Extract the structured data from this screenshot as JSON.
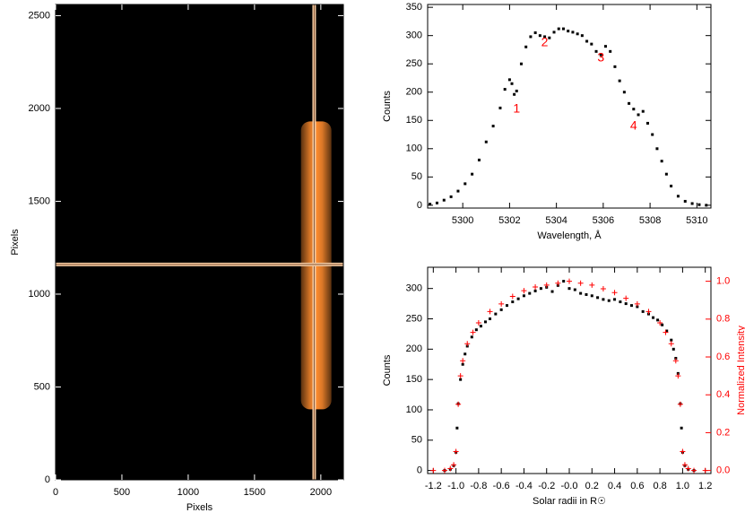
{
  "chart_data": [
    {
      "type": "image",
      "xlabel": "Pixels",
      "ylabel": "Pixels",
      "xlim": [
        0,
        2170
      ],
      "ylim": [
        0,
        2560
      ],
      "xticks": [
        0,
        500,
        1000,
        1500,
        2000
      ],
      "yticks": [
        0,
        500,
        1000,
        1500,
        2000,
        2500
      ],
      "background": "#000000",
      "band": {
        "x": [
          1850,
          2080
        ],
        "y": [
          380,
          1930
        ]
      },
      "band_color": "#ff8c2e",
      "crosshair": {
        "x": 1950,
        "y": 1160
      },
      "crosshair_color": "#f2c9a0"
    },
    {
      "type": "scatter",
      "xlabel": "Wavelength, Å",
      "ylabel": "Counts",
      "xlim": [
        5298.5,
        5310.6
      ],
      "ylim": [
        -5,
        355
      ],
      "xticks": [
        5300,
        5302,
        5304,
        5306,
        5308,
        5310
      ],
      "yticks": [
        0,
        50,
        100,
        150,
        200,
        250,
        300,
        350
      ],
      "series": [
        {
          "color": "#000000",
          "marker": "square",
          "x": [
            5298.6,
            5298.9,
            5299.2,
            5299.5,
            5299.8,
            5300.1,
            5300.4,
            5300.7,
            5301.0,
            5301.3,
            5301.6,
            5301.8,
            5302.0,
            5302.1,
            5302.2,
            5302.3,
            5302.5,
            5302.7,
            5302.9,
            5303.1,
            5303.3,
            5303.5,
            5303.7,
            5303.9,
            5304.1,
            5304.3,
            5304.5,
            5304.7,
            5304.9,
            5305.1,
            5305.3,
            5305.5,
            5305.7,
            5305.9,
            5306.1,
            5306.3,
            5306.5,
            5306.7,
            5306.9,
            5307.1,
            5307.3,
            5307.5,
            5307.7,
            5307.9,
            5308.1,
            5308.3,
            5308.5,
            5308.7,
            5308.9,
            5309.2,
            5309.5,
            5309.8,
            5310.1,
            5310.4
          ],
          "values": [
            2,
            4,
            9,
            15,
            25,
            38,
            55,
            80,
            112,
            140,
            172,
            205,
            222,
            215,
            196,
            202,
            250,
            280,
            298,
            305,
            300,
            298,
            296,
            306,
            312,
            312,
            308,
            306,
            303,
            300,
            290,
            285,
            272,
            266,
            281,
            272,
            245,
            220,
            200,
            180,
            170,
            160,
            166,
            145,
            125,
            100,
            78,
            55,
            34,
            16,
            7,
            3,
            1,
            0
          ]
        }
      ],
      "annotations": [
        {
          "text": "1",
          "x": 5302.3,
          "y": 170,
          "color": "#ff0000"
        },
        {
          "text": "2",
          "x": 5303.5,
          "y": 287,
          "color": "#ff0000"
        },
        {
          "text": "3",
          "x": 5305.9,
          "y": 260,
          "color": "#ff0000"
        },
        {
          "text": "4",
          "x": 5307.3,
          "y": 140,
          "color": "#ff0000"
        }
      ]
    },
    {
      "type": "scatter",
      "xlabel": "Solar radii in R☉",
      "ylabel": "Counts",
      "y2label": "Normalized Intensity",
      "y2color": "#ff0000",
      "xlim": [
        -1.25,
        1.25
      ],
      "ylim": [
        -5,
        335
      ],
      "y2lim": [
        -0.016,
        1.074
      ],
      "xticks": [
        -1.2,
        {
          "value": -1,
          "label": "-1.0"
        },
        -0.8,
        -0.6,
        -0.4,
        -0.2,
        {
          "value": 0,
          "label": "-0.0"
        },
        0.2,
        0.4,
        0.6,
        0.8,
        {
          "value": 1,
          "label": "1.0"
        },
        1.2
      ],
      "yticks": [
        0,
        50,
        100,
        150,
        200,
        250,
        300
      ],
      "y2ticks": [
        {
          "value": 0,
          "label": "0.0"
        },
        0.2,
        0.4,
        0.6,
        0.8,
        {
          "value": 1,
          "label": "1.0"
        }
      ],
      "series": [
        {
          "color": "#000000",
          "marker": "square",
          "x": [
            -1.1,
            -1.05,
            -1.02,
            -1.0,
            -0.99,
            -0.98,
            -0.96,
            -0.94,
            -0.92,
            -0.9,
            -0.86,
            -0.82,
            -0.78,
            -0.74,
            -0.7,
            -0.65,
            -0.6,
            -0.55,
            -0.5,
            -0.45,
            -0.4,
            -0.35,
            -0.3,
            -0.25,
            -0.2,
            -0.15,
            -0.1,
            -0.05,
            0.0,
            0.05,
            0.1,
            0.15,
            0.2,
            0.25,
            0.3,
            0.35,
            0.4,
            0.45,
            0.5,
            0.55,
            0.6,
            0.65,
            0.7,
            0.74,
            0.78,
            0.82,
            0.86,
            0.9,
            0.92,
            0.94,
            0.96,
            0.98,
            0.99,
            1.0,
            1.02,
            1.05,
            1.1
          ],
          "values": [
            0,
            2,
            8,
            30,
            70,
            110,
            150,
            175,
            192,
            205,
            220,
            232,
            238,
            245,
            250,
            258,
            265,
            272,
            278,
            283,
            288,
            292,
            296,
            300,
            302,
            295,
            305,
            312,
            300,
            298,
            292,
            290,
            288,
            285,
            282,
            280,
            282,
            278,
            275,
            272,
            270,
            262,
            258,
            252,
            248,
            240,
            230,
            215,
            200,
            185,
            160,
            110,
            70,
            30,
            8,
            2,
            0
          ]
        },
        {
          "color": "#ff0000",
          "marker": "plus",
          "axis": "y2",
          "x": [
            -1.2,
            -1.1,
            -1.05,
            -1.02,
            -1.0,
            -0.98,
            -0.96,
            -0.94,
            -0.9,
            -0.85,
            -0.8,
            -0.7,
            -0.6,
            -0.5,
            -0.4,
            -0.3,
            -0.2,
            -0.1,
            0.0,
            0.1,
            0.2,
            0.3,
            0.4,
            0.5,
            0.6,
            0.7,
            0.8,
            0.85,
            0.9,
            0.94,
            0.96,
            0.98,
            1.0,
            1.02,
            1.05,
            1.1,
            1.2
          ],
          "values": [
            0,
            0,
            0.01,
            0.03,
            0.1,
            0.35,
            0.5,
            0.58,
            0.67,
            0.73,
            0.78,
            0.84,
            0.88,
            0.92,
            0.95,
            0.97,
            0.98,
            0.99,
            1.0,
            0.99,
            0.98,
            0.96,
            0.94,
            0.91,
            0.88,
            0.84,
            0.78,
            0.73,
            0.67,
            0.58,
            0.5,
            0.35,
            0.1,
            0.03,
            0.01,
            0,
            0
          ]
        }
      ]
    }
  ]
}
